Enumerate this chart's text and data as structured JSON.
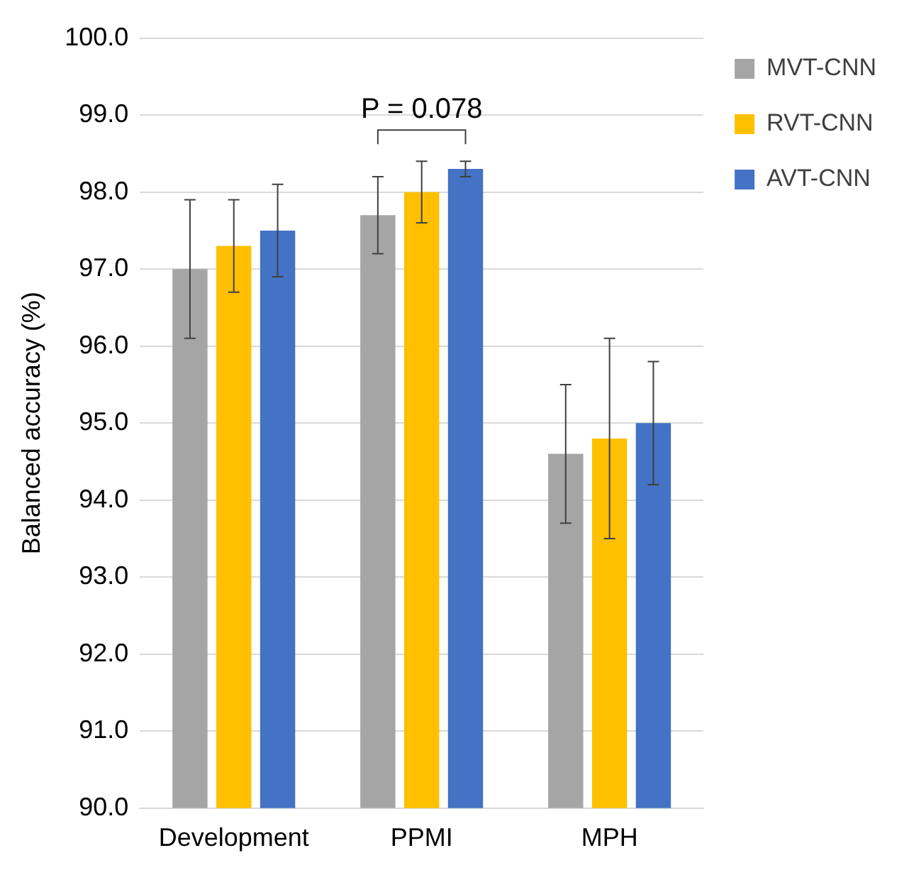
{
  "chart_data": {
    "type": "bar",
    "ylabel": "Balanced accuracy (%)",
    "categories": [
      "Development",
      "PPMI",
      "MPH"
    ],
    "series": [
      {
        "name": "MVT-CNN",
        "color": "#a5a5a5",
        "values": [
          97.0,
          97.7,
          94.6
        ],
        "errors": [
          0.9,
          0.5,
          0.9
        ]
      },
      {
        "name": "RVT-CNN",
        "color": "#ffc000",
        "values": [
          97.3,
          98.0,
          94.8
        ],
        "errors": [
          0.6,
          0.4,
          1.3
        ]
      },
      {
        "name": "AVT-CNN",
        "color": "#4472c4",
        "values": [
          97.5,
          98.3,
          95.0
        ],
        "errors": [
          0.6,
          0.1,
          0.8
        ]
      }
    ],
    "ylim": [
      90,
      100
    ],
    "yticks": [
      {
        "value": 90,
        "label": "90.0"
      },
      {
        "value": 91,
        "label": "91.0"
      },
      {
        "value": 92,
        "label": "92.0"
      },
      {
        "value": 93,
        "label": "93.0"
      },
      {
        "value": 94,
        "label": "94.0"
      },
      {
        "value": 95,
        "label": "95.0"
      },
      {
        "value": 96,
        "label": "96.0"
      },
      {
        "value": 97,
        "label": "97.0"
      },
      {
        "value": 98,
        "label": "98.0"
      },
      {
        "value": 99,
        "label": "99.0"
      },
      {
        "value": 100,
        "label": "100.0"
      }
    ],
    "grid": "y",
    "legend": "top right",
    "annotations": [
      "P = 0.078"
    ]
  }
}
